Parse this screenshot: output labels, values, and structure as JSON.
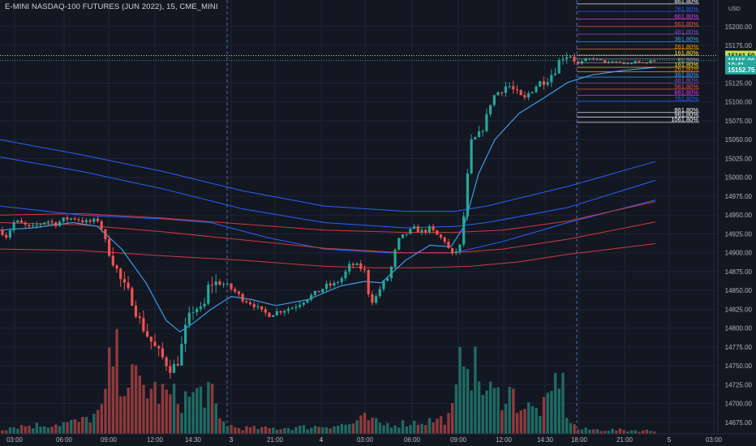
{
  "title": "E-MINI NASDAQ-100 FUTURES (JUN 2022), 15, CME_MINI",
  "currency": "USD",
  "colors": {
    "background": "#131722",
    "grid": "#1f2433",
    "up": "#26a69a",
    "down": "#ef5350",
    "vol_up": "#1f6b63",
    "vol_down": "#8f3a3c",
    "ma_blue": "#2962ff",
    "ema_light": "#3d9be9",
    "ma_red": "#d23a3d",
    "session": "#4a6fa5",
    "last_price": "#26a69a"
  },
  "chart_data": {
    "type": "candlestick",
    "interval": "15",
    "ylim": [
      14662,
      15232
    ],
    "x_ticks": [
      "03:00",
      "06:00",
      "09:00",
      "12:00",
      "14:30",
      "3",
      "21:00",
      "4",
      "03:00",
      "06:00",
      "09:00",
      "12:00",
      "14:30",
      "18:00",
      "21:00",
      "5",
      "03:00"
    ],
    "y_ticks": [
      "15200.00",
      "15175.00",
      "15125.00",
      "15100.00",
      "15075.00",
      "15050.00",
      "15025.00",
      "15000.00",
      "14975.00",
      "14950.00",
      "14925.00",
      "14900.00",
      "14875.00",
      "14850.00",
      "14825.00",
      "14800.00",
      "14775.00",
      "14750.00",
      "14725.00",
      "14700.00",
      "14675.00"
    ],
    "price_labels": [
      {
        "text": "15161.50",
        "price": 15161.5,
        "bg": "#c6e05b",
        "fg": "#131722"
      },
      {
        "text": "15155.00",
        "price": 15155.0,
        "bg": "#26a69a",
        "fg": "#ffffff"
      },
      {
        "text": "10:41",
        "price": 15149.0,
        "bg": "#26a69a",
        "fg": "#ffffff"
      },
      {
        "text": "15152.75",
        "price": 15143.0,
        "bg": "#26a69a",
        "fg": "#ffffff"
      }
    ],
    "fib_levels": [
      {
        "label": "861.80%",
        "price": 15230,
        "color": "#ffffff"
      },
      {
        "label": "761.80%",
        "price": 15220,
        "color": "#2962ff"
      },
      {
        "label": "661.80%",
        "price": 15210,
        "color": "#e040fb"
      },
      {
        "label": "561.80%",
        "price": 15200,
        "color": "#ef5350"
      },
      {
        "label": "461.80%",
        "price": 15190,
        "color": "#7e57c2"
      },
      {
        "label": "361.80%",
        "price": 15180,
        "color": "#42a5f5"
      },
      {
        "label": "261.80%",
        "price": 15170,
        "color": "#ff9800"
      },
      {
        "label": "161.80%",
        "price": 15162,
        "color": "#ffeb3b"
      },
      {
        "label": "",
        "price": 15157,
        "color": "#9e9e9e"
      },
      {
        "label": "61.80%",
        "price": 15152,
        "color": "#9e9e9e"
      },
      {
        "label": "161.80%",
        "price": 15146,
        "color": "#ffeb3b"
      },
      {
        "label": "261.80%",
        "price": 15140,
        "color": "#ff9800"
      },
      {
        "label": "361.80%",
        "price": 15133,
        "color": "#42a5f5"
      },
      {
        "label": "461.80%",
        "price": 15125,
        "color": "#7e57c2"
      },
      {
        "label": "561.80%",
        "price": 15117,
        "color": "#ef5350"
      },
      {
        "label": "661.80%",
        "price": 15109,
        "color": "#e040fb"
      },
      {
        "label": "761.80%",
        "price": 15101,
        "color": "#2962ff"
      },
      {
        "label": "861.80%",
        "price": 15086,
        "color": "#ffffff"
      },
      {
        "label": "961.80%",
        "price": 15080,
        "color": "#ffffff"
      },
      {
        "label": "1061.80%",
        "price": 15073,
        "color": "#ffffff"
      }
    ],
    "session_breaks_x": [
      280,
      711
    ],
    "current_price": 15155.0
  }
}
